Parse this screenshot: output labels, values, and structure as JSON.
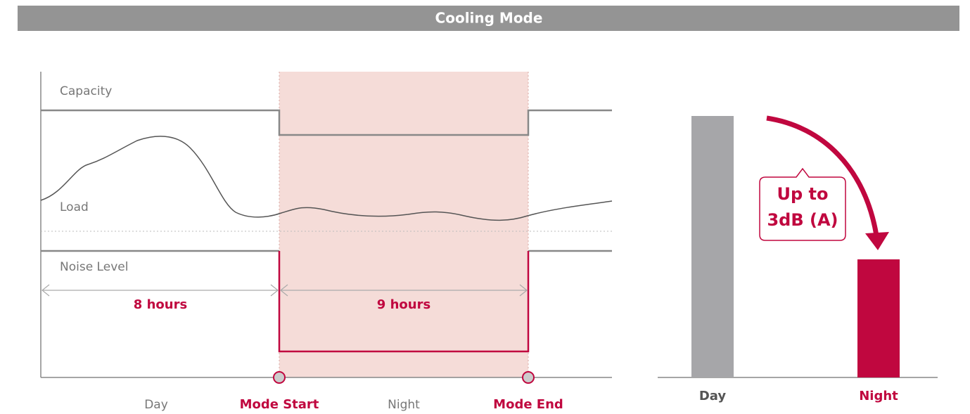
{
  "header": {
    "title": "Cooling Mode"
  },
  "timeline": {
    "capacity_label": "Capacity",
    "load_label": "Load",
    "noise_label": "Noise Level",
    "day_duration": "8 hours",
    "night_duration": "9 hours",
    "axis_labels": [
      "Day",
      "Mode Start",
      "Night",
      "Mode End"
    ]
  },
  "comparison": {
    "categories": [
      "Day",
      "Night"
    ],
    "callout": [
      "Up to",
      "3dB (A)"
    ]
  }
}
